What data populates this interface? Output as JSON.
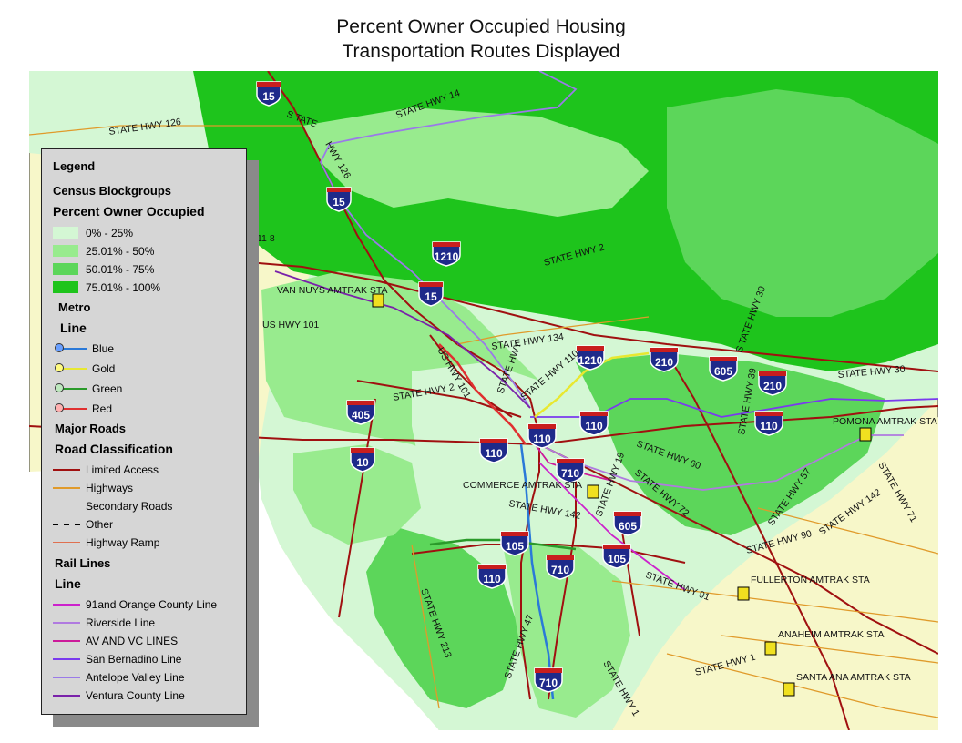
{
  "title_line1": "Percent Owner Occupied Housing",
  "title_line2": "Transportation Routes Displayed",
  "colors": {
    "ocean": "#ffffff",
    "outside": "#f7f7c9",
    "c0_25": "#d4f7d4",
    "c25_50": "#98eb8e",
    "c50_75": "#5cd65a",
    "c75_100": "#1ec41c",
    "limited_access": "#a01010",
    "highway": "#e09a2a",
    "metro_blue": "#2a79d8",
    "metro_gold": "#e8e830",
    "metro_green": "#2a9a2a",
    "metro_red": "#e03030",
    "rail_91": "#cc22cc",
    "rail_riverside": "#b07ae0",
    "rail_avvc": "#cc1a9a",
    "rail_sb": "#7a3aee",
    "rail_av": "#9a7ae8",
    "rail_ventura": "#7a22aa"
  },
  "legend": {
    "title": "Legend",
    "census": "Census Blockgroups",
    "pct": "Percent Owner Occupied",
    "classes": [
      "0% - 25%",
      "25.01% - 50%",
      "50.01% - 75%",
      "75.01% - 100%"
    ],
    "metro": "Metro",
    "metro_line": "Line",
    "metro_lines": [
      "Blue",
      "Gold",
      "Green",
      "Red"
    ],
    "major_roads": "Major Roads",
    "road_class": "Road Classification",
    "roads": [
      "Limited Access",
      "Highways",
      "Secondary Roads",
      "Other",
      "Highway Ramp"
    ],
    "rail": "Rail Lines",
    "rail_line": "Line",
    "rail_lines": [
      "91and Orange County Line",
      "Riverside Line",
      "AV AND VC LINES",
      "San Bernadino Line",
      "Antelope Valley Line",
      "Ventura County Line"
    ]
  },
  "shields": [
    "15",
    "15",
    "15",
    "1210",
    "1210",
    "210",
    "210",
    "605",
    "605",
    "405",
    "110",
    "110",
    "110",
    "110",
    "110",
    "10",
    "710",
    "710",
    "710",
    "105",
    "105"
  ],
  "road_labels": [
    "STATE HWY 126",
    "STATE HWY 14",
    "S TATE",
    "HWY 126",
    "STATE HWY 2",
    "S TATE HWY 39",
    "STATE HWY 39",
    "STATE HWY 30",
    "US HWY 101",
    "US HWY 101",
    "STATE HWY 2",
    "STATE HWY 134",
    "STATE HWY 110",
    "STATE HWY",
    "STATE HWY 60",
    "STATE HWY 19",
    "STATE HWY 72",
    "STATE HWY 142",
    "STATE HWY 142",
    "STATE HWY 57",
    "STATE HWY 71",
    "STATE HWY 90",
    "STATE HWY 91",
    "STATE HWY 213",
    "STATE HWY 47",
    "STATE HWY 1",
    "STATE HWY 1",
    "11 8"
  ],
  "stations": [
    "VAN NUYS AMTRAK STA",
    "POMONA AMTRAK STA",
    "COMMERCE AMTRAK STA",
    "FULLERTON AMTRAK STA",
    "ANAHEIM AMTRAK STA",
    "SANTA ANA AMTRAK STA"
  ]
}
